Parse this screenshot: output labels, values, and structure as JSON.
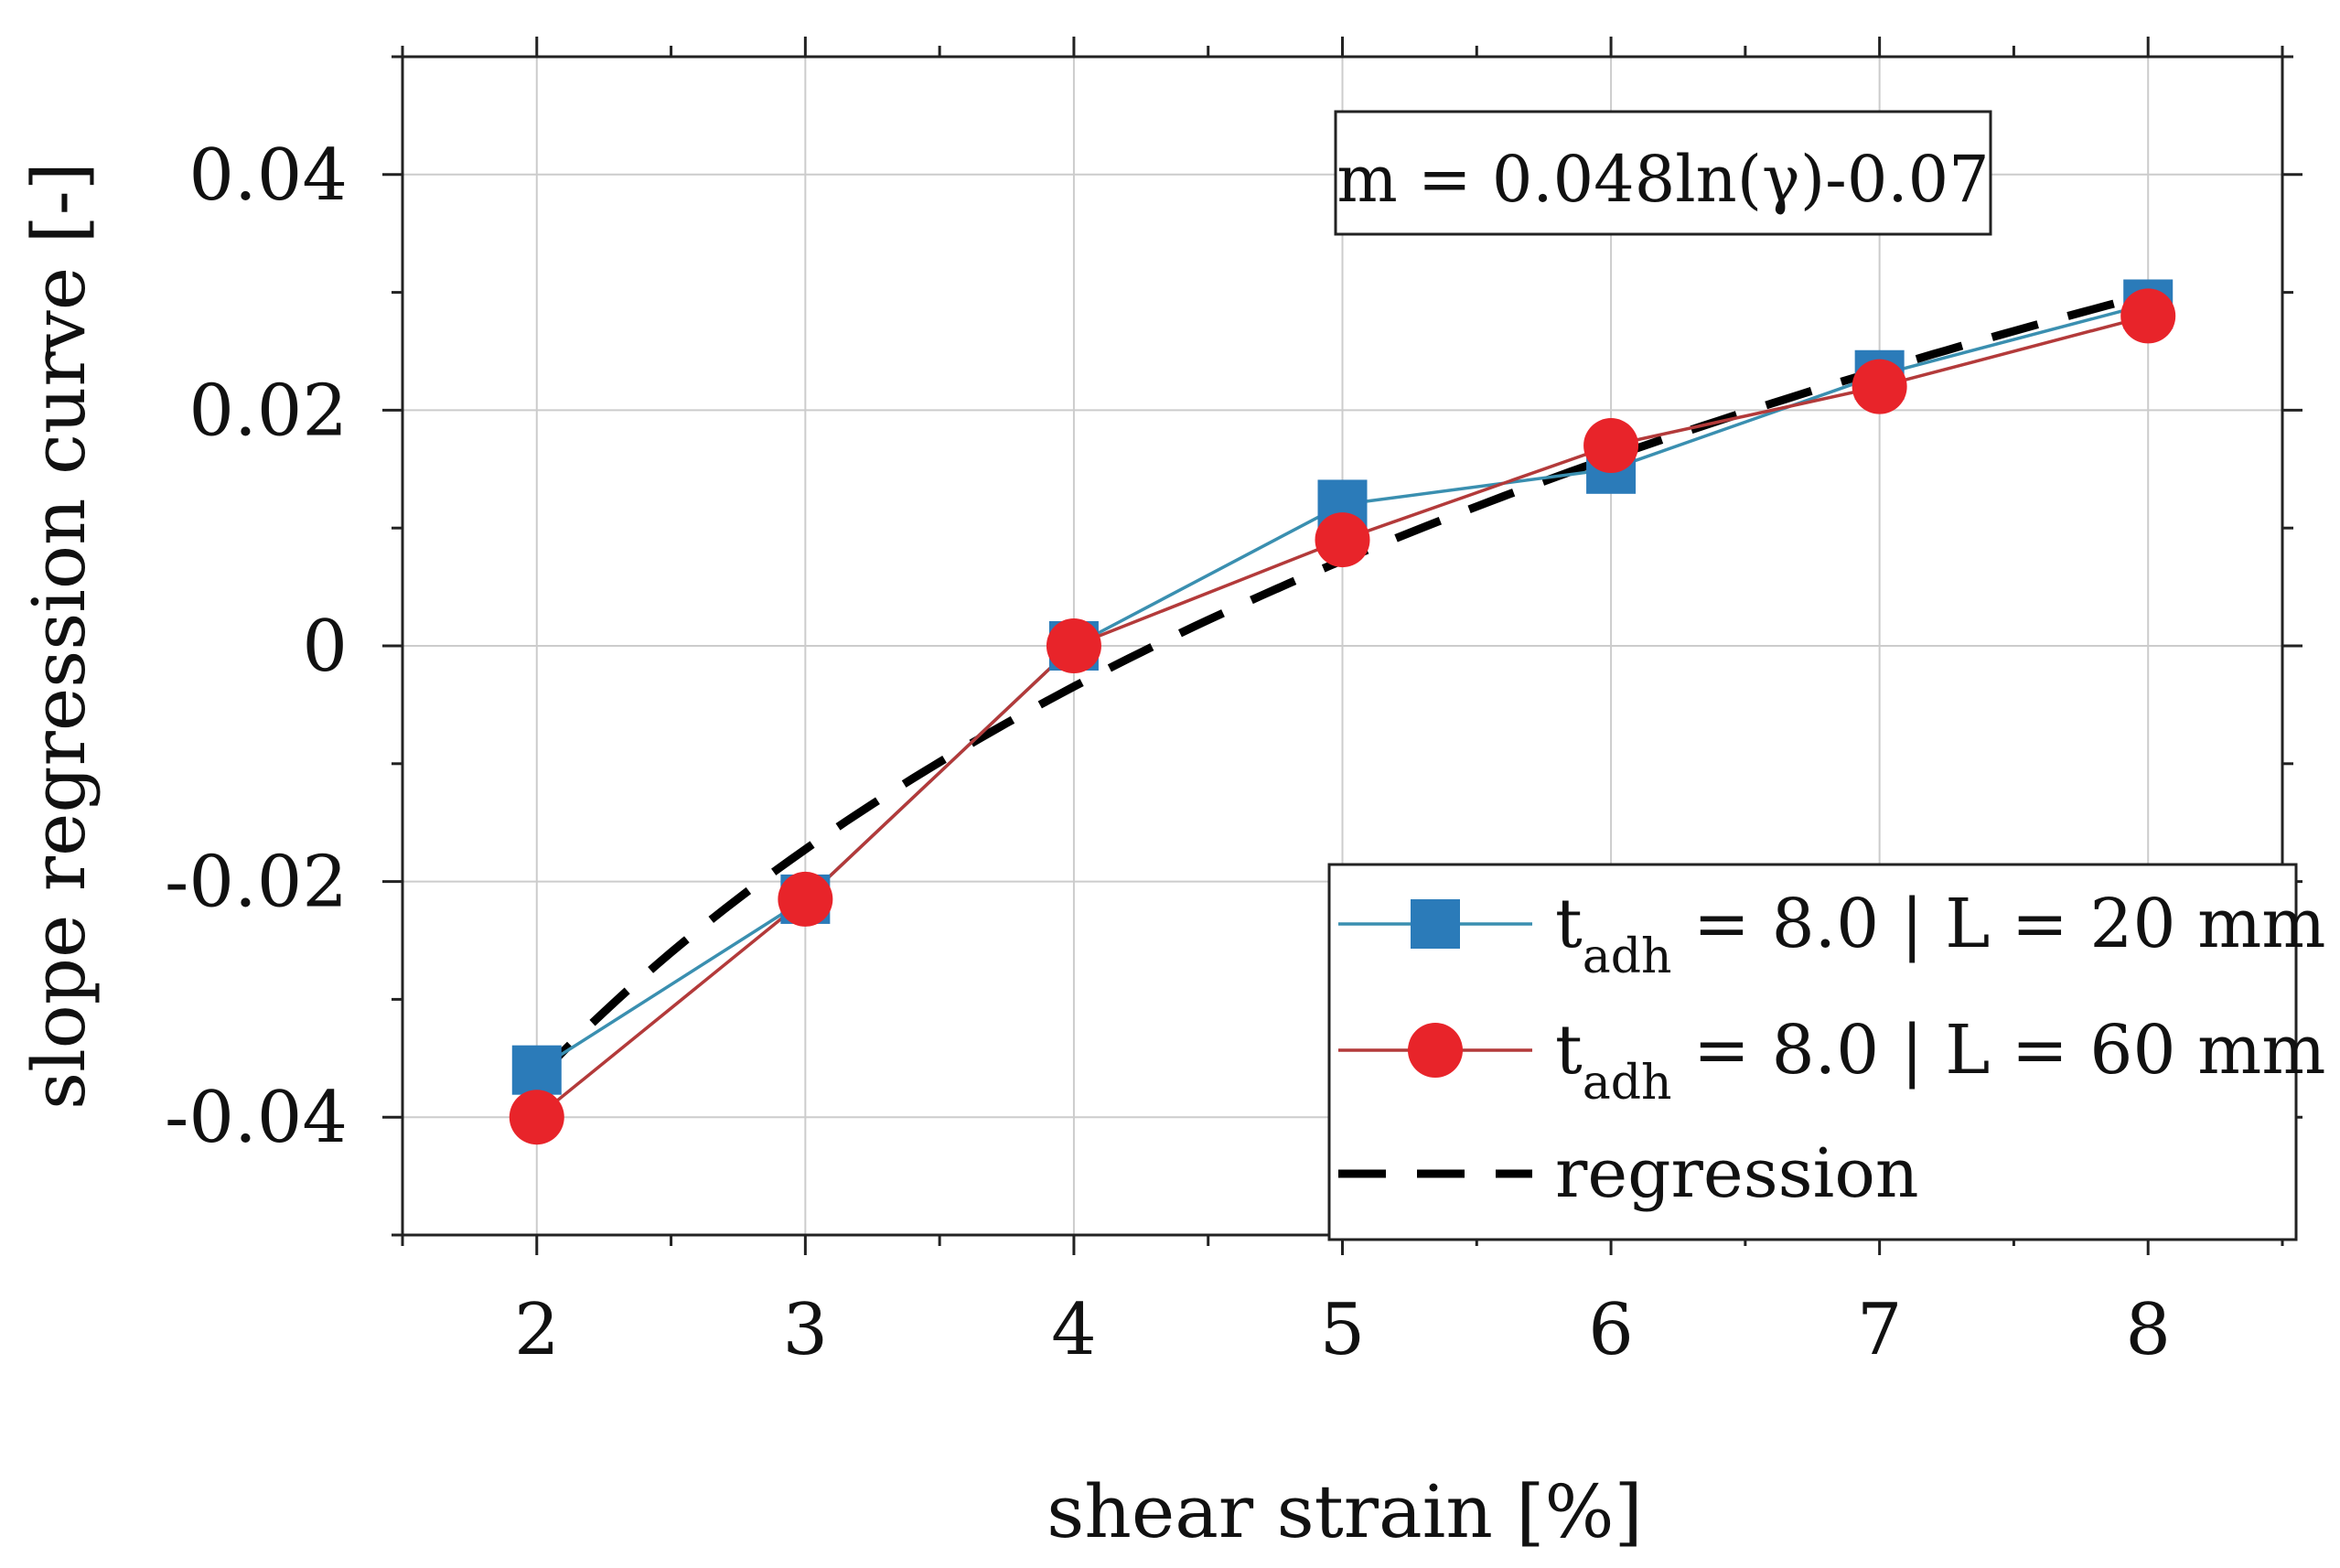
{
  "chart_data": {
    "type": "line",
    "xlabel": "shear strain [%]",
    "ylabel": "slope regression curve [-]",
    "xlim": [
      1.5,
      8.5
    ],
    "ylim": [
      -0.05,
      0.05
    ],
    "grid": true,
    "x": [
      2,
      3,
      4,
      5,
      6,
      7,
      8
    ],
    "x_tick_labels": [
      "2",
      "3",
      "4",
      "5",
      "6",
      "7",
      "8"
    ],
    "y_ticks": [
      -0.04,
      -0.02,
      0,
      0.02,
      0.04
    ],
    "y_tick_labels": [
      "-0.04",
      "-0.02",
      "0",
      "0.02",
      "0.04"
    ],
    "series": [
      {
        "name": "t_adh = 8.0 | L = 20 mm",
        "label_main": "t",
        "label_sub": "adh",
        "label_rest": " = 8.0 | L = 20 mm",
        "marker": "square",
        "color": "#2b7bb9",
        "line_color": "#3a8fb0",
        "values": [
          -0.036,
          -0.0215,
          0.0,
          0.012,
          0.015,
          0.023,
          0.029
        ]
      },
      {
        "name": "t_adh = 8.0 | L = 60 mm",
        "label_main": "t",
        "label_sub": "adh",
        "label_rest": " = 8.0 | L = 60 mm",
        "marker": "circle",
        "color": "#e8242a",
        "line_color": "#b33a3a",
        "values": [
          -0.04,
          -0.0215,
          0.0,
          0.009,
          0.017,
          0.022,
          0.028
        ]
      },
      {
        "name": "regression",
        "label_main": "regression",
        "marker": "none",
        "line_style": "dashed",
        "color": "#000000",
        "equation": {
          "a": 0.048,
          "b": -0.07
        },
        "x_range": [
          2,
          8
        ]
      }
    ],
    "annotation": "m = 0.048ln(γ)-0.07",
    "legend_position": "bottom-right"
  }
}
